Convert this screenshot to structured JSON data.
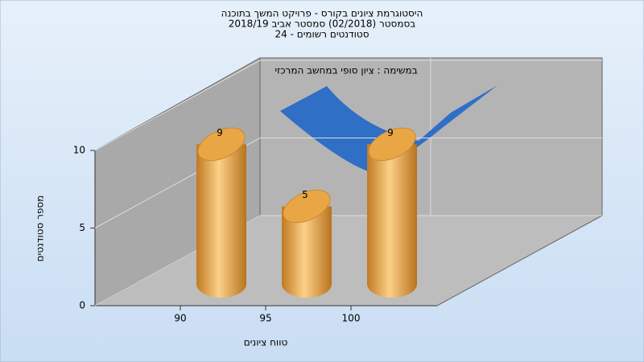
{
  "chart_data": {
    "type": "bar3d",
    "title": [
      "היסטוגרמת ציונים בקורס - פרויקט המשך בתוכנה",
      "בסמסטר  (02/2018)  סמסטר אביב 2018/19",
      "סטודנטים רשומים - 24"
    ],
    "subtitle": "במשימה : ציון סופי במחשב המרכזי",
    "x_label": "טווח ציונים",
    "y_label": "מספר סטודנטים",
    "categories": [
      "90",
      "95",
      "100"
    ],
    "values": [
      9,
      5,
      9
    ],
    "color": "#e8a540",
    "ylim": [
      0,
      10
    ],
    "yticks": [
      0,
      5,
      10
    ],
    "grid": true
  }
}
